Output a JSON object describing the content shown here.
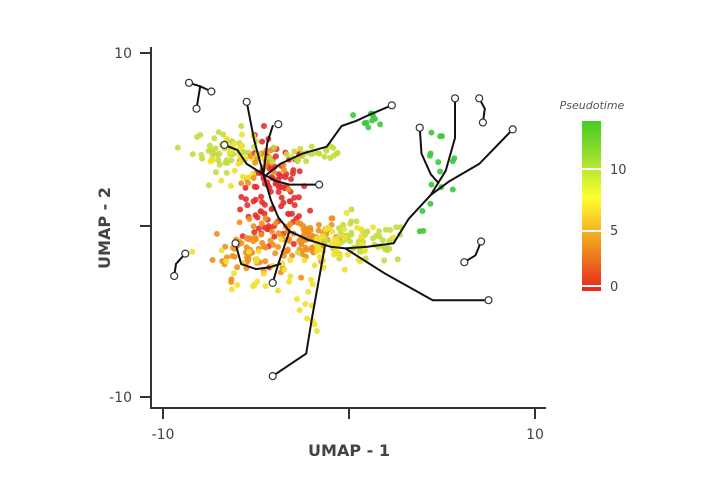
{
  "chart_data": {
    "type": "scatter",
    "title": "",
    "xlabel": "UMAP - 1",
    "ylabel": "UMAP - 2",
    "xlim": [
      -10.6,
      10.6
    ],
    "ylim": [
      -10.6,
      10.4
    ],
    "x_ticks": [
      -10,
      0,
      10
    ],
    "x_tick_labels": [
      "-10",
      "",
      "10"
    ],
    "y_ticks": [
      10,
      0,
      -10
    ],
    "y_tick_labels": [
      "10",
      "",
      "-10"
    ],
    "grid": false,
    "legend": {
      "title": "Pseudotime",
      "position": "right",
      "type": "colorbar",
      "ticks": [
        0,
        5,
        10
      ],
      "tick_labels": [
        "0",
        "5",
        "10"
      ],
      "range": [
        0,
        13.5
      ],
      "colors": [
        "#e8251b",
        "#f0a020",
        "#ffff30",
        "#9ee030",
        "#44cc22"
      ]
    },
    "point_colors": {
      "red": "#e3302e",
      "orange": "#ef9020",
      "yellow": "#f0e030",
      "lime": "#c4dc40",
      "green": "#3cc83c"
    },
    "clusters": [
      {
        "name": "central-red",
        "cx": -4.0,
        "cy": 1.8,
        "sx": 0.9,
        "sy": 1.6,
        "n": 110,
        "color": "red"
      },
      {
        "name": "center-junction",
        "cx": -2.4,
        "cy": -0.6,
        "sx": 1.0,
        "sy": 0.7,
        "n": 70,
        "color": "orange"
      },
      {
        "name": "left-loop",
        "cx": -5.3,
        "cy": -1.4,
        "sx": 1.0,
        "sy": 0.8,
        "n": 60,
        "color": "orange"
      },
      {
        "name": "upper-left",
        "cx": -6.6,
        "cy": 4.4,
        "sx": 0.9,
        "sy": 0.6,
        "n": 45,
        "color": "lime"
      },
      {
        "name": "upper-left-yellow",
        "cx": -6.0,
        "cy": 3.9,
        "sx": 0.9,
        "sy": 0.6,
        "n": 25,
        "color": "yellow"
      },
      {
        "name": "upper-mid-orange",
        "cx": -4.6,
        "cy": 3.4,
        "sx": 0.6,
        "sy": 0.5,
        "n": 20,
        "color": "orange"
      },
      {
        "name": "upper-branch",
        "cx": -2.2,
        "cy": 4.2,
        "sx": 1.3,
        "sy": 0.4,
        "n": 30,
        "color": "lime"
      },
      {
        "name": "right-mid",
        "cx": 0.7,
        "cy": -1.0,
        "sx": 1.3,
        "sy": 0.6,
        "n": 60,
        "color": "lime"
      },
      {
        "name": "right-mid-yellow",
        "cx": -0.5,
        "cy": -1.2,
        "sx": 1.2,
        "sy": 0.8,
        "n": 40,
        "color": "yellow"
      },
      {
        "name": "left-yellow",
        "cx": -5.0,
        "cy": -2.3,
        "sx": 1.2,
        "sy": 0.8,
        "n": 22,
        "color": "yellow"
      },
      {
        "name": "down-branch",
        "cx": -1.9,
        "cy": -4.0,
        "sx": 0.4,
        "sy": 1.2,
        "n": 14,
        "color": "yellow"
      },
      {
        "name": "upper-right-green",
        "cx": 4.8,
        "cy": 3.0,
        "sx": 0.6,
        "sy": 1.6,
        "n": 16,
        "color": "green"
      },
      {
        "name": "green-top-left",
        "cx": 1.0,
        "cy": 6.2,
        "sx": 0.6,
        "sy": 0.2,
        "n": 10,
        "color": "green"
      }
    ],
    "trajectory_segments": [
      [
        [
          -5.5,
          7.2
        ],
        [
          -5.1,
          5.0
        ],
        [
          -4.6,
          3.0
        ],
        [
          -4.2,
          1.5
        ],
        [
          -3.8,
          0.5
        ],
        [
          -3.2,
          -0.3
        ],
        [
          -2.2,
          -0.8
        ],
        [
          -1.0,
          -1.2
        ],
        [
          -0.2,
          -1.3
        ],
        [
          1.0,
          -1.2
        ],
        [
          2.4,
          -1.0
        ],
        [
          3.2,
          0.4
        ],
        [
          4.4,
          1.8
        ],
        [
          5.4,
          2.6
        ],
        [
          7.0,
          3.6
        ],
        [
          8.8,
          5.6
        ]
      ],
      [
        [
          -4.1,
          5.8
        ],
        [
          -4.4,
          4.8
        ],
        [
          -4.6,
          3.0
        ]
      ],
      [
        [
          -6.7,
          4.7
        ],
        [
          -6.0,
          4.4
        ],
        [
          -5.5,
          3.6
        ],
        [
          -4.6,
          3.0
        ]
      ],
      [
        [
          -4.6,
          3.0
        ],
        [
          -3.9,
          2.6
        ],
        [
          -3.2,
          2.4
        ],
        [
          -1.6,
          2.4
        ]
      ],
      [
        [
          -4.4,
          3.0
        ],
        [
          -3.7,
          3.6
        ],
        [
          -2.5,
          4.2
        ],
        [
          -1.2,
          4.6
        ],
        [
          -0.4,
          5.8
        ],
        [
          0.4,
          6.1
        ],
        [
          1.2,
          6.5
        ],
        [
          2.3,
          7.0
        ]
      ],
      [
        [
          -3.2,
          -0.3
        ],
        [
          -3.8,
          -2.2
        ],
        [
          -4.1,
          -3.3
        ]
      ],
      [
        [
          -6.1,
          -1.0
        ],
        [
          -5.8,
          -2.2
        ],
        [
          -5.0,
          -2.5
        ],
        [
          -4.3,
          -2.4
        ],
        [
          -3.7,
          -2.2
        ]
      ],
      [
        [
          -1.3,
          -1.2
        ],
        [
          -1.6,
          -3.0
        ],
        [
          -2.0,
          -5.4
        ],
        [
          -2.3,
          -7.4
        ],
        [
          -4.1,
          -8.7
        ]
      ],
      [
        [
          -0.2,
          -1.3
        ],
        [
          2.0,
          -2.8
        ],
        [
          4.5,
          -4.3
        ],
        [
          7.5,
          -4.3
        ]
      ],
      [
        [
          3.8,
          5.7
        ],
        [
          3.9,
          4.2
        ],
        [
          4.4,
          3.0
        ],
        [
          4.8,
          2.5
        ]
      ],
      [
        [
          5.7,
          7.4
        ],
        [
          5.7,
          5.1
        ],
        [
          5.2,
          3.2
        ],
        [
          4.4,
          1.8
        ]
      ]
    ],
    "isolated_segments": [
      [
        [
          -8.6,
          8.3
        ],
        [
          -8.0,
          8.1
        ],
        [
          -7.4,
          7.8
        ]
      ],
      [
        [
          -8.0,
          8.1
        ],
        [
          -8.2,
          6.8
        ]
      ],
      [
        [
          -8.8,
          -1.6
        ],
        [
          -9.3,
          -2.2
        ],
        [
          -9.4,
          -2.9
        ]
      ],
      [
        [
          7.1,
          -0.9
        ],
        [
          6.8,
          -1.7
        ],
        [
          6.2,
          -2.1
        ]
      ],
      [
        [
          7.0,
          7.4
        ],
        [
          7.3,
          6.8
        ],
        [
          7.2,
          6.0
        ]
      ]
    ],
    "endpoints": [
      [
        -8.6,
        8.3
      ],
      [
        -7.4,
        7.8
      ],
      [
        -8.2,
        6.8
      ],
      [
        -5.5,
        7.2
      ],
      [
        -3.8,
        5.9
      ],
      [
        -6.7,
        4.7
      ],
      [
        -1.6,
        2.4
      ],
      [
        2.3,
        7.0
      ],
      [
        3.8,
        5.7
      ],
      [
        5.7,
        7.4
      ],
      [
        7.0,
        7.4
      ],
      [
        7.2,
        6.0
      ],
      [
        8.8,
        5.6
      ],
      [
        -6.1,
        -1.0
      ],
      [
        -4.1,
        -3.3
      ],
      [
        -9.4,
        -2.9
      ],
      [
        -8.8,
        -1.6
      ],
      [
        7.1,
        -0.9
      ],
      [
        6.2,
        -2.1
      ],
      [
        7.5,
        -4.3
      ],
      [
        -4.1,
        -8.7
      ]
    ]
  }
}
